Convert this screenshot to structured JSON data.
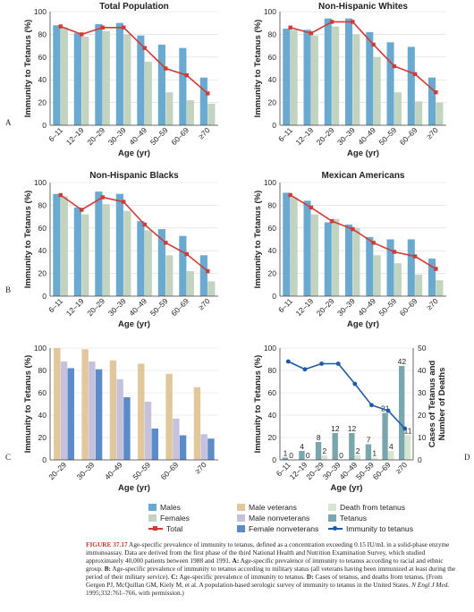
{
  "colors": {
    "male": "#6aa9d0",
    "female": "#c2d4c0",
    "total": "#d23a35",
    "male_veterans": "#e1c89c",
    "male_nonveterans": "#c6c2dd",
    "female_nonveterans": "#5b8bc9",
    "death": "#d8e4d2",
    "tetanus": "#7aa6ad",
    "immunity": "#1f5aa8",
    "grid": "#d9d9d9",
    "axis": "#444444"
  },
  "chart_data": [
    {
      "panel": "A",
      "type": "bar",
      "title": "Total Population",
      "xlabel": "Age (yr)",
      "ylabel": "Immunity to Tetanus (%)",
      "ylim": [
        0,
        100
      ],
      "yticks": [
        0,
        20,
        40,
        60,
        80,
        100
      ],
      "categories": [
        "6–11",
        "12–19",
        "20–29",
        "30–39",
        "40–49",
        "50–59",
        "60–69",
        "≥70"
      ],
      "series": [
        {
          "name": "Males",
          "kind": "bar",
          "values": [
            88,
            81,
            89,
            90,
            79,
            71,
            68,
            42
          ]
        },
        {
          "name": "Females",
          "kind": "bar",
          "values": [
            86,
            78,
            83,
            80,
            56,
            29,
            22,
            19
          ]
        },
        {
          "name": "Total",
          "kind": "line",
          "values": [
            87,
            80,
            86,
            86,
            68,
            50,
            44,
            28
          ]
        }
      ]
    },
    {
      "panel": "",
      "type": "bar",
      "title": "Non-Hispanic Whites",
      "xlabel": "Age (yr)",
      "ylabel": "Immunity to Tetanus (%)",
      "ylim": [
        0,
        100
      ],
      "yticks": [
        0,
        20,
        40,
        60,
        80,
        100
      ],
      "categories": [
        "6–11",
        "12–19",
        "20–29",
        "30–39",
        "40–49",
        "50–59",
        "60–69",
        "≥70"
      ],
      "series": [
        {
          "name": "Males",
          "kind": "bar",
          "values": [
            85,
            84,
            94,
            94,
            82,
            73,
            69,
            42
          ]
        },
        {
          "name": "Females",
          "kind": "bar",
          "values": [
            84,
            79,
            87,
            80,
            60,
            29,
            21,
            20
          ]
        },
        {
          "name": "Total",
          "kind": "line",
          "values": [
            86,
            81,
            91,
            91,
            71,
            52,
            45,
            29
          ]
        }
      ]
    },
    {
      "panel": "B",
      "type": "bar",
      "title": "Non-Hispanic Blacks",
      "xlabel": "Age (yr)",
      "ylabel": "Immunity to Tetanus (%)",
      "ylim": [
        0,
        100
      ],
      "yticks": [
        0,
        20,
        40,
        60,
        80,
        100
      ],
      "categories": [
        "6–11",
        "12–19",
        "20–29",
        "30–39",
        "40–49",
        "50–59",
        "60–69",
        "≥70"
      ],
      "series": [
        {
          "name": "Males",
          "kind": "bar",
          "values": [
            90,
            78,
            92,
            90,
            66,
            59,
            53,
            36
          ]
        },
        {
          "name": "Females",
          "kind": "bar",
          "values": [
            88,
            72,
            81,
            75,
            58,
            36,
            22,
            13
          ]
        },
        {
          "name": "Total",
          "kind": "line",
          "values": [
            89,
            76,
            87,
            83,
            63,
            47,
            37,
            22
          ]
        }
      ]
    },
    {
      "panel": "",
      "type": "bar",
      "title": "Mexican Americans",
      "xlabel": "Age (yr)",
      "ylabel": "Immunity to Tetanus (%)",
      "ylim": [
        0,
        100
      ],
      "yticks": [
        0,
        20,
        40,
        60,
        80,
        100
      ],
      "categories": [
        "6–11",
        "12–19",
        "20–29",
        "30–39",
        "40–49",
        "50–59",
        "60–69",
        "≥70"
      ],
      "series": [
        {
          "name": "Males",
          "kind": "bar",
          "values": [
            91,
            84,
            65,
            63,
            52,
            50,
            50,
            33
          ]
        },
        {
          "name": "Females",
          "kind": "bar",
          "values": [
            87,
            72,
            68,
            60,
            36,
            29,
            19,
            14
          ]
        },
        {
          "name": "Total",
          "kind": "line",
          "values": [
            89,
            78,
            66,
            59,
            47,
            39,
            35,
            24
          ]
        }
      ]
    },
    {
      "panel": "C",
      "type": "bar",
      "title": "",
      "xlabel": "Age (yr)",
      "ylabel": "Immunity to Tetanus (%)",
      "ylim": [
        0,
        100
      ],
      "yticks": [
        0,
        20,
        40,
        60,
        80,
        100
      ],
      "categories": [
        "20–29",
        "30–39",
        "40–49",
        "50–59",
        "60–69",
        "≥70"
      ],
      "series": [
        {
          "name": "Male veterans",
          "kind": "bar",
          "values": [
            100,
            99,
            89,
            86,
            77,
            65
          ]
        },
        {
          "name": "Male nonveterans",
          "kind": "bar",
          "values": [
            88,
            88,
            72,
            52,
            37,
            23
          ]
        },
        {
          "name": "Female nonveterans",
          "kind": "bar",
          "values": [
            82,
            81,
            56,
            28,
            22,
            19
          ]
        }
      ]
    },
    {
      "panel": "D",
      "type": "bar",
      "title": "",
      "xlabel": "Age (yr)",
      "ylabel": "Immunity to Tetanus (%)",
      "ylabel_right": "Cases of Tetanus and Number of Deaths",
      "ylim": [
        0,
        100
      ],
      "yticks": [
        0,
        20,
        40,
        60,
        80,
        100
      ],
      "ylim_right": [
        0,
        50
      ],
      "yticks_right": [
        0,
        10,
        20,
        30,
        40,
        50
      ],
      "categories": [
        "6–11",
        "12–19",
        "20–29",
        "30–39",
        "40–49",
        "50–59",
        "60–69",
        "≥70"
      ],
      "series": [
        {
          "name": "Tetanus",
          "kind": "bar",
          "axis": "right",
          "values": [
            1,
            4,
            8,
            12,
            12,
            7,
            21,
            42
          ],
          "labels": [
            "1",
            "4",
            "8",
            "12",
            "12",
            "7",
            "21",
            "42"
          ]
        },
        {
          "name": "Death from tetanus",
          "kind": "bar",
          "axis": "right",
          "values": [
            0,
            0,
            2,
            0,
            2,
            1,
            4,
            11
          ],
          "labels": [
            "0",
            "0",
            "2",
            "0",
            "2",
            "1",
            "4",
            "11"
          ]
        },
        {
          "name": "Immunity to tetanus",
          "kind": "line",
          "axis": "left",
          "values": [
            88,
            81,
            86,
            86,
            68,
            49,
            44,
            28
          ]
        }
      ]
    }
  ],
  "legend": {
    "items": [
      {
        "label": "Males",
        "swatch": "male",
        "kind": "box"
      },
      {
        "label": "Male veterans",
        "swatch": "male_veterans",
        "kind": "box"
      },
      {
        "label": "Death from tetanus",
        "swatch": "death",
        "kind": "box"
      },
      {
        "label": "Females",
        "swatch": "female",
        "kind": "box"
      },
      {
        "label": "Male nonveterans",
        "swatch": "male_nonveterans",
        "kind": "box"
      },
      {
        "label": "Tetanus",
        "swatch": "tetanus",
        "kind": "box"
      },
      {
        "label": "Total",
        "swatch": "total",
        "kind": "line-square"
      },
      {
        "label": "Female nonveterans",
        "swatch": "female_nonveterans",
        "kind": "box"
      },
      {
        "label": "Immunity to tetanus",
        "swatch": "immunity",
        "kind": "line-circle"
      }
    ]
  },
  "caption": {
    "label": "FIGURE 37.17",
    "intro": "Age-specific prevalence of immunity to tetanus, defined as a concentration exceeding 0.15 IU/mL in a solid-phase enzyme immunoassay. Data are derived from the first phase of the third National Health and Nutrition Examination Survey, which studied approximately 40,000 patients between 1988 and 1991.",
    "a_label": "A:",
    "a_text": "Age-specific prevalence of immunity to tetanus according to racial and ethnic group.",
    "b_label": "B:",
    "b_text": "Age-specific prevalence of immunity to tetanus according to military status (all veterans having been immunized at least during the period of their military service).",
    "c_label": "C:",
    "c_text": "Age-specific prevalence of immunity to tetanus.",
    "d_label": "D:",
    "d_text": "Cases of tetanus, and deaths from tetanus. (From Gergen PJ, McQuillan GM, Kiely M, et al. A population-based serologic survey of immunity to tetanus in the United States.",
    "journal": "N Engl J Med.",
    "citation_end": "1995;332:761–766, with permission.)"
  }
}
